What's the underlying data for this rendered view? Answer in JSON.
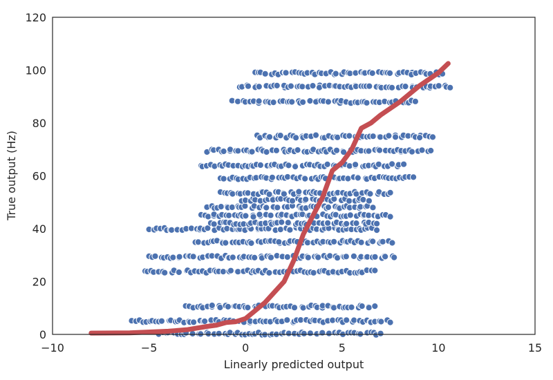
{
  "chart_data": {
    "type": "scatter",
    "title": "",
    "xlabel": "Linearly predicted output",
    "ylabel": "True output (Hz)",
    "xlim": [
      -10,
      15
    ],
    "ylim": [
      0,
      120
    ],
    "xticks": [
      -10,
      -5,
      0,
      5,
      10,
      15
    ],
    "xtick_labels": [
      "−10",
      "−5",
      "0",
      "5",
      "10",
      "15"
    ],
    "yticks": [
      0,
      20,
      40,
      60,
      80,
      100,
      120
    ],
    "ytick_labels": [
      "0",
      "20",
      "40",
      "60",
      "80",
      "100",
      "120"
    ],
    "grid": false,
    "colors": {
      "points": "#4C72B0",
      "curve": "#C44E52",
      "point_edge": "#ffffff"
    },
    "scatter_bands": [
      {
        "y": 0.3,
        "x_range": [
          -4.5,
          7.0
        ]
      },
      {
        "y": 5.0,
        "x_range": [
          -5.9,
          7.5
        ]
      },
      {
        "y": 10.5,
        "x_range": [
          -3.1,
          6.7
        ]
      },
      {
        "y": 23.8,
        "x_range": [
          -5.2,
          6.7
        ]
      },
      {
        "y": 29.3,
        "x_range": [
          -5.0,
          7.7
        ]
      },
      {
        "y": 35.0,
        "x_range": [
          -2.6,
          7.6
        ]
      },
      {
        "y": 39.9,
        "x_range": [
          -5.0,
          6.8
        ]
      },
      {
        "y": 42.0,
        "x_range": [
          -1.8,
          6.8
        ]
      },
      {
        "y": 45.0,
        "x_range": [
          -2.3,
          7.5
        ]
      },
      {
        "y": 48.2,
        "x_range": [
          -2.0,
          6.6
        ]
      },
      {
        "y": 51.0,
        "x_range": [
          -0.2,
          6.4
        ]
      },
      {
        "y": 53.5,
        "x_range": [
          -1.3,
          7.5
        ]
      },
      {
        "y": 59.2,
        "x_range": [
          -1.3,
          8.7
        ]
      },
      {
        "y": 64.0,
        "x_range": [
          -2.3,
          8.2
        ]
      },
      {
        "y": 69.5,
        "x_range": [
          -2.0,
          9.6
        ]
      },
      {
        "y": 74.9,
        "x_range": [
          0.6,
          9.7
        ]
      },
      {
        "y": 88.0,
        "x_range": [
          -0.7,
          8.8
        ]
      },
      {
        "y": 93.8,
        "x_range": [
          -0.3,
          10.6
        ]
      },
      {
        "y": 98.8,
        "x_range": [
          0.5,
          10.2
        ]
      }
    ],
    "curve": {
      "x": [
        -8.0,
        -6.0,
        -4.0,
        -3.0,
        -2.0,
        -1.5,
        -1.0,
        -0.5,
        0.0,
        0.5,
        1.0,
        1.5,
        2.0,
        2.5,
        3.0,
        3.5,
        4.0,
        4.5,
        5.0,
        5.5,
        6.0,
        6.5,
        7.0,
        8.0,
        9.0,
        10.0,
        10.5
      ],
      "y": [
        0.5,
        0.6,
        1.2,
        1.8,
        3.0,
        3.5,
        4.5,
        4.8,
        6.0,
        9.0,
        12.0,
        16.0,
        20.0,
        28.0,
        38.0,
        45.0,
        52.0,
        62.0,
        65.0,
        70.0,
        78.0,
        80.0,
        83.0,
        88.0,
        94.0,
        99.0,
        102.5
      ]
    }
  }
}
